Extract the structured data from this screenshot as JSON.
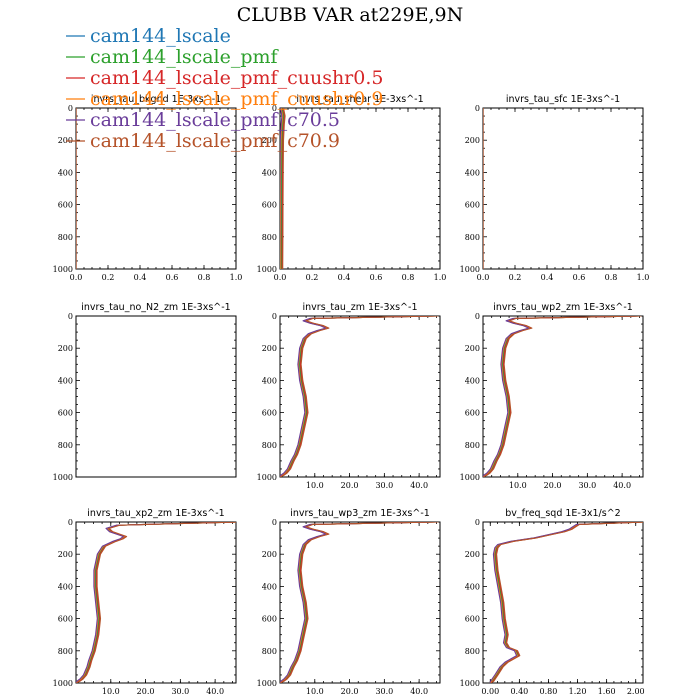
{
  "figure": {
    "title": "CLUBB VAR at229E,9N",
    "legend": [
      {
        "label": "cam144_lscale",
        "color": "#1f77b4"
      },
      {
        "label": "cam144_lscale_pmf",
        "color": "#2ca02c"
      },
      {
        "label": "cam144_lscale_pmf_cuushr0.5",
        "color": "#d62728"
      },
      {
        "label": "cam144_lscale_pmf_cuushr0.9",
        "color": "#ff7f0e"
      },
      {
        "label": "cam144_lscale_pmf_c70.5",
        "color": "#6a3d9a"
      },
      {
        "label": "cam144_lscale_pmf_c70.9",
        "color": "#b5532a"
      }
    ]
  },
  "chart_data": [
    {
      "type": "line",
      "title": "invrs_tau_bkgnd   1E-3xs^-1",
      "xlim": [
        0,
        1
      ],
      "ylim": [
        1000,
        0
      ],
      "xticks": [
        0,
        0.2,
        0.4,
        0.6,
        0.8,
        1.0
      ],
      "xtick_labels": [
        "0.0",
        "0.2",
        "0.4",
        "0.6",
        "0.8",
        "1.0"
      ],
      "yticks": [
        0,
        200,
        400,
        600,
        800,
        1000
      ],
      "ytick_labels": [
        "0",
        "200",
        "400",
        "600",
        "800",
        "1000"
      ],
      "profile": {
        "y": [
          0,
          1000
        ],
        "x": [
          0,
          0
        ]
      }
    },
    {
      "type": "line",
      "title": "invrs_tau_shear   1E-3xs^-1",
      "xlim": [
        0,
        1
      ],
      "ylim": [
        1000,
        0
      ],
      "xticks": [
        0,
        0.2,
        0.4,
        0.6,
        0.8,
        1.0
      ],
      "xtick_labels": [
        "0.0",
        "0.2",
        "0.4",
        "0.6",
        "0.8",
        "1.0"
      ],
      "yticks": [
        0,
        200,
        400,
        600,
        800,
        1000
      ],
      "ytick_labels": [
        "0",
        "200",
        "400",
        "600",
        "800",
        "1000"
      ],
      "profile": {
        "y": [
          0,
          50,
          100,
          200,
          400,
          600,
          800,
          1000
        ],
        "x": [
          0.01,
          0.02,
          0.015,
          0.01,
          0.008,
          0.007,
          0.006,
          0.005
        ]
      }
    },
    {
      "type": "line",
      "title": "invrs_tau_sfc   1E-3xs^-1",
      "xlim": [
        0,
        1
      ],
      "ylim": [
        1000,
        0
      ],
      "xticks": [
        0,
        0.2,
        0.4,
        0.6,
        0.8,
        1.0
      ],
      "xtick_labels": [
        "0.0",
        "0.2",
        "0.4",
        "0.6",
        "0.8",
        "1.0"
      ],
      "yticks": [
        0,
        200,
        400,
        600,
        800,
        1000
      ],
      "ytick_labels": [
        "0",
        "200",
        "400",
        "600",
        "800",
        "1000"
      ],
      "profile": {
        "y": [
          0,
          1000
        ],
        "x": [
          0,
          0
        ]
      }
    },
    {
      "type": "line",
      "title": "invrs_tau_no_N2_zm   1E-3xs^-1",
      "xlim": [
        0,
        1
      ],
      "ylim": [
        1000,
        0
      ],
      "xticks": [],
      "xtick_labels": [],
      "yticks": [
        0,
        200,
        400,
        600,
        800,
        1000
      ],
      "ytick_labels": [
        "0",
        "200",
        "400",
        "600",
        "800",
        "1000"
      ],
      "profile": {
        "y": [],
        "x": []
      }
    },
    {
      "type": "line",
      "title": "invrs_tau_zm   1E-3xs^-1",
      "xlim": [
        0,
        46
      ],
      "ylim": [
        1000,
        0
      ],
      "xticks": [
        10,
        20,
        30,
        40
      ],
      "xtick_labels": [
        "10.0",
        "20.0",
        "30.0",
        "40.0"
      ],
      "yticks": [
        0,
        200,
        400,
        600,
        800,
        1000
      ],
      "ytick_labels": [
        "0",
        "200",
        "400",
        "600",
        "800",
        "1000"
      ],
      "profile": {
        "y": [
          0,
          15,
          30,
          45,
          60,
          75,
          90,
          110,
          140,
          200,
          300,
          400,
          500,
          600,
          700,
          800,
          860,
          900,
          950,
          975,
          990,
          1000
        ],
        "x": [
          45,
          9,
          7,
          9,
          12,
          13.5,
          11,
          8.5,
          7,
          6,
          5.5,
          6,
          7,
          7.5,
          6.5,
          5.5,
          4.5,
          3.5,
          2.5,
          1.5,
          0.5,
          0
        ]
      }
    },
    {
      "type": "line",
      "title": "invrs_tau_wp2_zm   1E-3xs^-1",
      "xlim": [
        0,
        46
      ],
      "ylim": [
        1000,
        0
      ],
      "xticks": [
        10,
        20,
        30,
        40
      ],
      "xtick_labels": [
        "10.0",
        "20.0",
        "30.0",
        "40.0"
      ],
      "yticks": [
        0,
        200,
        400,
        600,
        800,
        1000
      ],
      "ytick_labels": [
        "0",
        "200",
        "400",
        "600",
        "800",
        "1000"
      ],
      "profile": {
        "y": [
          0,
          15,
          30,
          45,
          60,
          75,
          90,
          110,
          140,
          200,
          300,
          400,
          500,
          600,
          700,
          800,
          860,
          900,
          950,
          975,
          990,
          1000
        ],
        "x": [
          45,
          9,
          7,
          9,
          12,
          13.5,
          11,
          8.5,
          7,
          6,
          5.5,
          6,
          7,
          7.5,
          6.5,
          5.5,
          4.5,
          3.5,
          2.5,
          1.5,
          0.5,
          0
        ]
      }
    },
    {
      "type": "line",
      "title": "invrs_tau_xp2_zm   1E-3xs^-1",
      "xlim": [
        0,
        46
      ],
      "ylim": [
        1000,
        0
      ],
      "xticks": [
        10,
        20,
        30,
        40
      ],
      "xtick_labels": [
        "10.0",
        "20.0",
        "30.0",
        "40.0"
      ],
      "yticks": [
        0,
        200,
        400,
        600,
        800,
        1000
      ],
      "ytick_labels": [
        "0",
        "200",
        "400",
        "600",
        "800",
        "1000"
      ],
      "profile": {
        "y": [
          0,
          20,
          40,
          60,
          75,
          90,
          105,
          120,
          150,
          200,
          300,
          400,
          500,
          600,
          700,
          800,
          860,
          900,
          950,
          975,
          990,
          1000
        ],
        "x": [
          46,
          12,
          9,
          10,
          12,
          14,
          13,
          11,
          8,
          6.5,
          5.5,
          5.5,
          6,
          6.5,
          6,
          5,
          4,
          3.5,
          2.5,
          1.5,
          0.5,
          0
        ]
      }
    },
    {
      "type": "line",
      "title": "invrs_tau_wp3_zm   1E-3xs^-1",
      "xlim": [
        0,
        46
      ],
      "ylim": [
        1000,
        0
      ],
      "xticks": [
        10,
        20,
        30,
        40
      ],
      "xtick_labels": [
        "10.0",
        "20.0",
        "30.0",
        "40.0"
      ],
      "yticks": [
        0,
        200,
        400,
        600,
        800,
        1000
      ],
      "ytick_labels": [
        "0",
        "200",
        "400",
        "600",
        "800",
        "1000"
      ],
      "profile": {
        "y": [
          0,
          15,
          30,
          45,
          60,
          75,
          90,
          110,
          140,
          200,
          300,
          400,
          500,
          600,
          700,
          800,
          860,
          900,
          950,
          975,
          990,
          1000
        ],
        "x": [
          45,
          9,
          7,
          9,
          12,
          13.5,
          11,
          8.5,
          7,
          6,
          5.5,
          6,
          7,
          7.5,
          6.5,
          5.5,
          4.5,
          3.5,
          2.5,
          1.5,
          0.5,
          0
        ]
      }
    },
    {
      "type": "line",
      "title": "bv_freq_sqd   1E-3x1/s^2",
      "xlim": [
        -0.1,
        2.1
      ],
      "ylim": [
        1000,
        0
      ],
      "xticks": [
        0,
        0.4,
        0.8,
        1.2,
        1.6,
        2.0
      ],
      "xtick_labels": [
        "0.00",
        "0.40",
        "0.80",
        "1.20",
        "1.60",
        "2.00"
      ],
      "yticks": [
        0,
        200,
        400,
        600,
        800,
        1000
      ],
      "ytick_labels": [
        "0",
        "200",
        "400",
        "600",
        "800",
        "1000"
      ],
      "profile": {
        "y": [
          0,
          15,
          30,
          45,
          60,
          80,
          100,
          120,
          140,
          160,
          200,
          300,
          400,
          500,
          600,
          650,
          700,
          750,
          780,
          800,
          830,
          850,
          870,
          900,
          950,
          990,
          1000
        ],
        "x": [
          2.1,
          1.2,
          1.15,
          1.1,
          1.0,
          0.8,
          0.6,
          0.3,
          0.12,
          0.08,
          0.06,
          0.08,
          0.12,
          0.16,
          0.18,
          0.2,
          0.22,
          0.2,
          0.24,
          0.35,
          0.38,
          0.3,
          0.22,
          0.15,
          0.08,
          0.02,
          0
        ]
      }
    }
  ]
}
